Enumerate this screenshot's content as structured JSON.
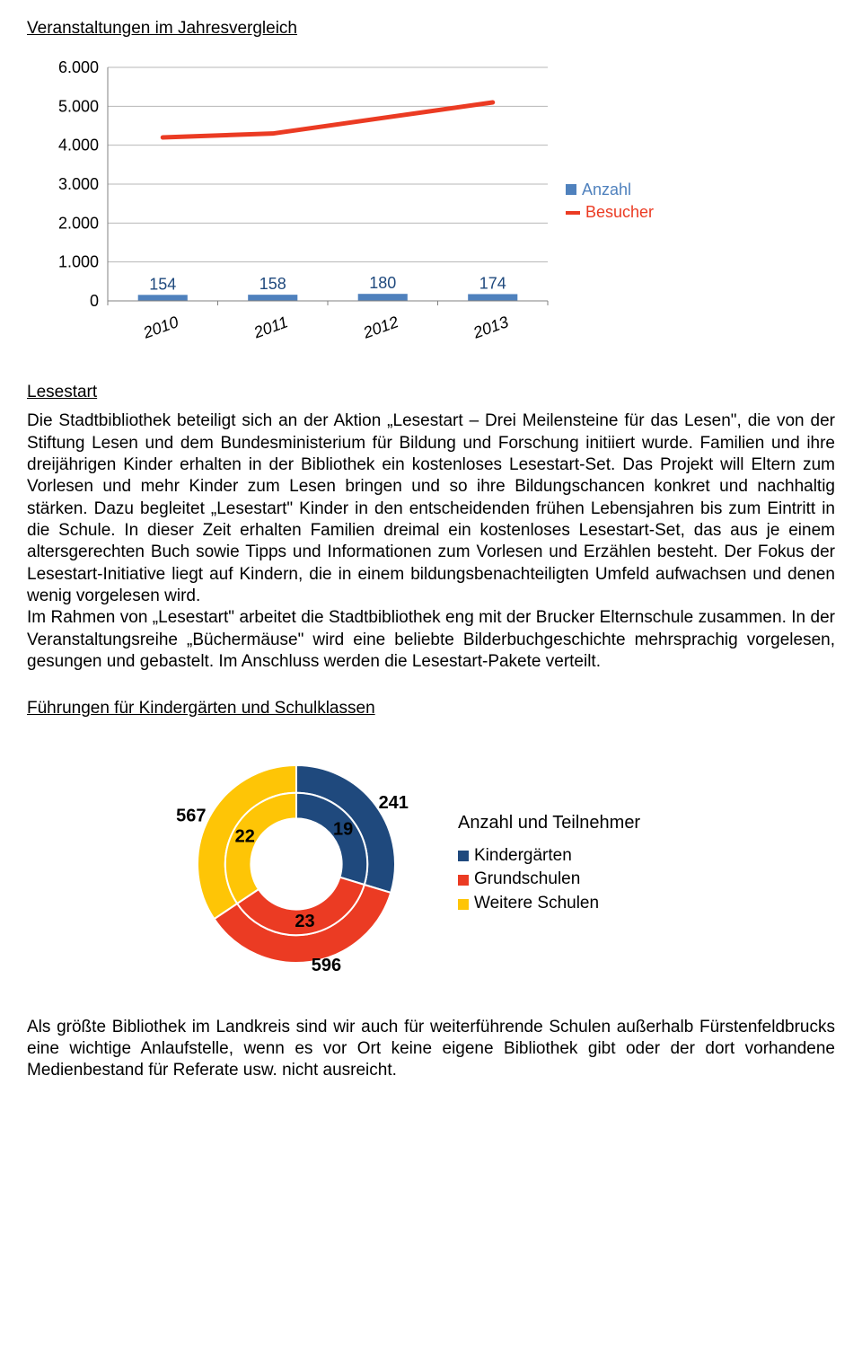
{
  "heading_main": "Veranstaltungen im Jahresvergleich",
  "chart": {
    "type": "bar+line",
    "y_ticks": [
      "6.000",
      "5.000",
      "4.000",
      "3.000",
      "2.000",
      "1.000",
      "0"
    ],
    "y_max": 6000,
    "x_labels": [
      "2010",
      "2011",
      "2012",
      "2013"
    ],
    "bars": {
      "values": [
        154,
        158,
        180,
        174
      ],
      "labels": [
        "154",
        "158",
        "180",
        "174"
      ],
      "color": "#4f81bd",
      "label_color": "#1f497d"
    },
    "line": {
      "values": [
        4200,
        4300,
        4700,
        5100
      ],
      "color": "#eb3b23"
    },
    "plot_bg": "#ffffff",
    "grid_color": "#b7b7b7",
    "axis_color": "#808080",
    "tick_font": 18,
    "xlabel_font": 18,
    "xlabel_italic": true,
    "legend": [
      {
        "label": "Anzahl",
        "color": "#4f81bd",
        "shape": "square"
      },
      {
        "label": "Besucher",
        "color": "#eb3b23",
        "shape": "line"
      }
    ]
  },
  "sub_lesestart": "Lesestart",
  "text_lesestart": "Die Stadtbibliothek beteiligt sich an der Aktion „Lesestart – Drei Meilensteine für das Lesen\", die von der Stiftung Lesen und dem Bundesministerium für Bildung und Forschung initiiert wurde. Familien und ihre dreijährigen Kinder erhalten in der Bibliothek ein kostenloses Lesestart-Set. Das Projekt will Eltern zum Vorlesen und mehr Kinder zum Lesen bringen und so ihre Bildungschancen konkret und nachhaltig stärken. Dazu begleitet „Lesestart\" Kinder in den entscheidenden frühen Lebensjahren bis zum Eintritt in die Schule. In dieser Zeit erhalten Familien dreimal ein kostenloses Lesestart-Set, das aus je einem altersgerechten Buch sowie Tipps und Informationen zum Vorlesen und Erzählen besteht. Der Fokus der Lesestart-Initiative liegt auf Kindern, die in einem bildungsbenachteiligten Umfeld aufwachsen und denen wenig vorgelesen wird.\nIm Rahmen von „Lesestart\" arbeitet die Stadtbibliothek eng mit der Brucker Elternschule zusammen. In der Veranstaltungsreihe „Büchermäuse\" wird eine beliebte Bilderbuchgeschichte mehrsprachig vorgelesen, gesungen und gebastelt. Im Anschluss werden die Lesestart-Pakete verteilt.",
  "sub_fuehrungen": "Führungen für Kindergärten und Schulklassen",
  "donut": {
    "type": "donut",
    "inner_ratio": 0.46,
    "slices": [
      {
        "label": "Kindergärten",
        "inner": 19,
        "outer": 241,
        "color": "#1f497d"
      },
      {
        "label": "Grundschulen",
        "inner": 23,
        "outer": 596,
        "color": "#eb3b23"
      },
      {
        "label": "Weitere Schulen",
        "inner": 22,
        "outer": 567,
        "color": "#fec506"
      }
    ],
    "title": "Anzahl und Teilnehmer",
    "label_font": 20,
    "label_bold": true,
    "legend_font": 19
  },
  "text_footer": "Als größte Bibliothek im Landkreis sind wir auch für weiterführende Schulen außerhalb Fürstenfeldbrucks eine wichtige Anlaufstelle, wenn es vor Ort keine eigene Bibliothek gibt oder der dort vorhandene Medienbestand für Referate usw. nicht ausreicht."
}
